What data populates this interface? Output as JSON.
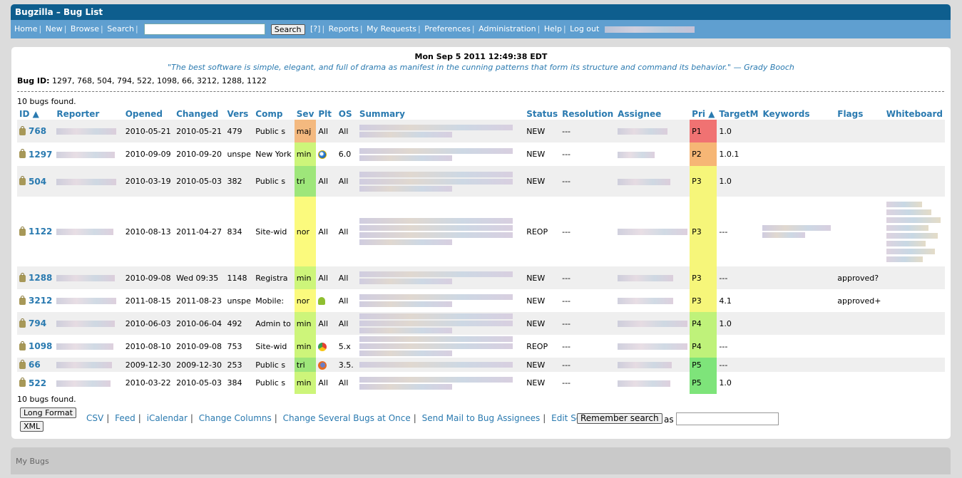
{
  "app": {
    "title": "Bugzilla – Bug List"
  },
  "nav": {
    "links": [
      "Home",
      "New",
      "Browse",
      "Search"
    ],
    "search_button": "Search",
    "help": "[?]",
    "links2": [
      "Reports",
      "My Requests",
      "Preferences",
      "Administration",
      "Help",
      "Log out"
    ]
  },
  "page": {
    "datestamp": "Mon Sep 5 2011 12:49:38 EDT",
    "quote": "\"The best software is simple, elegant, and full of drama as manifest in the cunning patterns that form its structure and command its behavior.\" — Grady Booch",
    "bug_id_label": "Bug ID:",
    "bug_ids": "1297, 768, 504, 794, 522, 1098, 66, 3212, 1288, 1122",
    "count_text": "10 bugs found."
  },
  "table": {
    "headers": [
      "ID ▲",
      "Reporter",
      "Opened",
      "Changed",
      "Vers",
      "Comp",
      "Sev",
      "Plt",
      "OS",
      "Summary",
      "Status",
      "Resolution",
      "Assignee",
      "Pri ▲",
      "TargetM",
      "Keywords",
      "Flags",
      "Whiteboard"
    ],
    "rows": [
      {
        "id": "768",
        "opened": "2010-05-21",
        "changed": "2010-05-21",
        "vers": "479",
        "comp": "Public s",
        "sev": "maj",
        "plt": "All",
        "os": "All",
        "status": "NEW",
        "resolution": "---",
        "pri": "P1",
        "target": "1.0",
        "flags": ""
      },
      {
        "id": "1297",
        "opened": "2010-09-09",
        "changed": "2010-09-20",
        "vers": "unspe",
        "comp": "New York",
        "sev": "min",
        "plt_icon": "ie-icon",
        "os": "6.0",
        "status": "NEW",
        "resolution": "---",
        "pri": "P2",
        "target": "1.0.1",
        "flags": ""
      },
      {
        "id": "504",
        "opened": "2010-03-19",
        "changed": "2010-05-03",
        "vers": "382",
        "comp": "Public s",
        "sev": "tri",
        "plt": "All",
        "os": "All",
        "status": "NEW",
        "resolution": "---",
        "pri": "P3",
        "target": "1.0",
        "flags": ""
      },
      {
        "id": "1122",
        "opened": "2010-08-13",
        "changed": "2011-04-27",
        "vers": "834",
        "comp": "Site-wid",
        "sev": "nor",
        "plt": "All",
        "os": "All",
        "status": "REOP",
        "resolution": "---",
        "pri": "P3",
        "target": "---",
        "flags": ""
      },
      {
        "id": "1288",
        "opened": "2010-09-08",
        "changed": "Wed 09:35",
        "vers": "1148",
        "comp": "Registra",
        "sev": "min",
        "plt": "All",
        "os": "All",
        "status": "NEW",
        "resolution": "---",
        "pri": "P3",
        "target": "---",
        "flags": "approved?"
      },
      {
        "id": "3212",
        "opened": "2011-08-15",
        "changed": "2011-08-23",
        "vers": "unspe",
        "comp": "Mobile:",
        "sev": "nor",
        "plt_icon": "android-icon",
        "os": "All",
        "status": "NEW",
        "resolution": "---",
        "pri": "P3",
        "target": "4.1",
        "flags": "approved+"
      },
      {
        "id": "794",
        "opened": "2010-06-03",
        "changed": "2010-06-04",
        "vers": "492",
        "comp": "Admin to",
        "sev": "min",
        "plt": "All",
        "os": "All",
        "status": "NEW",
        "resolution": "---",
        "pri": "P4",
        "target": "1.0",
        "flags": ""
      },
      {
        "id": "1098",
        "opened": "2010-08-10",
        "changed": "2010-09-08",
        "vers": "753",
        "comp": "Site-wid",
        "sev": "min",
        "plt_icon": "chrome-icon",
        "os": "5.x",
        "status": "REOP",
        "resolution": "---",
        "pri": "P4",
        "target": "---",
        "flags": ""
      },
      {
        "id": "66",
        "opened": "2009-12-30",
        "changed": "2009-12-30",
        "vers": "253",
        "comp": "Public s",
        "sev": "tri",
        "plt_icon": "firefox-icon",
        "os": "3.5.",
        "status": "NEW",
        "resolution": "---",
        "pri": "P5",
        "target": "---",
        "flags": ""
      },
      {
        "id": "522",
        "opened": "2010-03-22",
        "changed": "2010-05-03",
        "vers": "384",
        "comp": "Public s",
        "sev": "min",
        "plt": "All",
        "os": "All",
        "status": "NEW",
        "resolution": "---",
        "pri": "P5",
        "target": "1.0",
        "flags": ""
      }
    ]
  },
  "footer": {
    "long_format": "Long Format",
    "xml": "XML",
    "links": [
      "CSV",
      "Feed",
      "iCalendar",
      "Change Columns",
      "Change Several Bugs at Once",
      "Send Mail to Bug Assignees",
      "Edit Search"
    ],
    "remember": "Remember search",
    "as": "as"
  },
  "mybugs": {
    "label": "My Bugs"
  },
  "colors": {
    "titlebar": "#0e5e8e",
    "navbar": "#5f9fd0",
    "link": "#2a7ab0"
  }
}
